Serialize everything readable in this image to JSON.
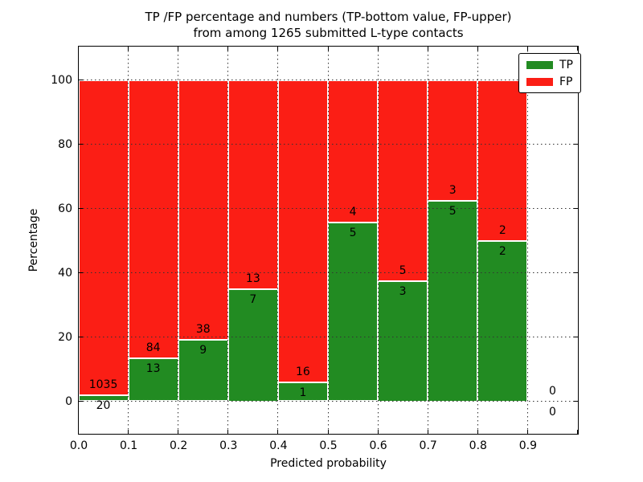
{
  "title": {
    "line1": "TP /FP percentage and numbers (TP-bottom value, FP-upper)",
    "line2": "from among 1265 submitted L-type contacts"
  },
  "axes": {
    "xlabel": "Predicted probability",
    "ylabel": "Percentage",
    "yticks": [
      0,
      20,
      40,
      60,
      80,
      100
    ],
    "xticks": [
      "0.0",
      "0.1",
      "0.2",
      "0.3",
      "0.4",
      "0.5",
      "0.6",
      "0.7",
      "0.8",
      "0.9"
    ]
  },
  "legend": {
    "items": [
      {
        "label": "TP",
        "color": "#228b22"
      },
      {
        "label": "FP",
        "color": "#fb1e15"
      }
    ]
  },
  "colors": {
    "tp": "#228b22",
    "fp": "#fb1e15",
    "bar_edge": "#ffffff",
    "grid": "#333333"
  },
  "chart_data": {
    "type": "bar",
    "stacked": true,
    "normalized_to_percent": true,
    "title": "TP /FP percentage and numbers (TP-bottom value, FP-upper) from among 1265 submitted L-type contacts",
    "xlabel": "Predicted probability",
    "ylabel": "Percentage",
    "xlim": [
      0.0,
      1.0
    ],
    "ylim": [
      -10,
      110
    ],
    "grid": true,
    "legend_position": "upper right",
    "total_contacts": 1265,
    "bin_width": 0.1,
    "categories": [
      "0.0-0.1",
      "0.1-0.2",
      "0.2-0.3",
      "0.3-0.4",
      "0.4-0.5",
      "0.5-0.6",
      "0.6-0.7",
      "0.7-0.8",
      "0.8-0.9",
      "0.9-1.0"
    ],
    "series": [
      {
        "name": "TP",
        "color": "#228b22",
        "counts": [
          20,
          13,
          9,
          7,
          1,
          5,
          3,
          5,
          2,
          0
        ]
      },
      {
        "name": "FP",
        "color": "#fb1e15",
        "counts": [
          1035,
          84,
          38,
          13,
          16,
          4,
          5,
          3,
          2,
          0
        ]
      }
    ],
    "tp_percent": [
      1.9,
      13.4,
      19.1,
      35.0,
      5.9,
      55.6,
      37.5,
      62.5,
      50.0,
      0.0
    ],
    "fp_percent": [
      98.1,
      86.6,
      80.9,
      65.0,
      94.1,
      44.4,
      62.5,
      37.5,
      50.0,
      0.0
    ]
  }
}
